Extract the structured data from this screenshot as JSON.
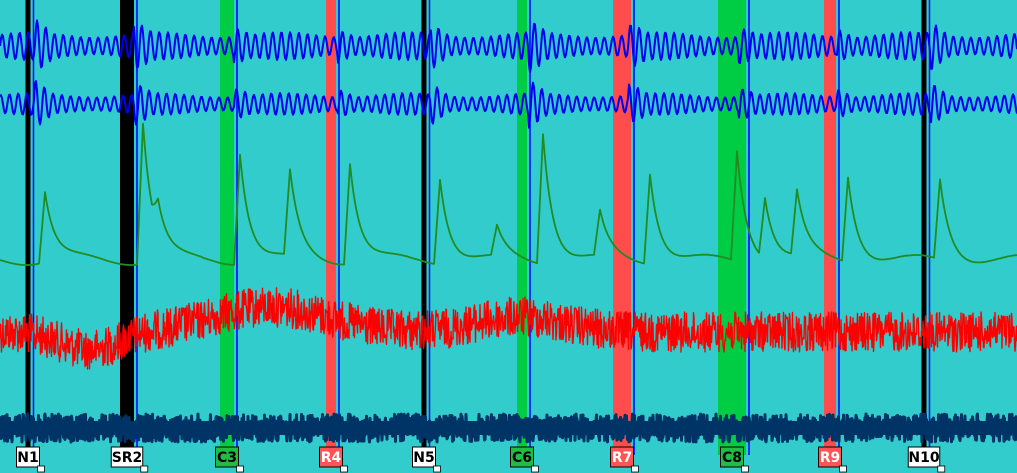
{
  "chart_data": {
    "type": "line",
    "title": "",
    "xlabel": "",
    "ylabel": "",
    "background": "#33cccc",
    "grid": false,
    "legend": "none",
    "x_range": [
      0,
      1017
    ],
    "markers": [
      {
        "label": "N1",
        "x": 28,
        "kind": "N",
        "band": 5,
        "band_color": "#000000",
        "label_bg": "#ffffff",
        "label_fg": "#000000"
      },
      {
        "label": "SR2",
        "x": 127,
        "kind": "SR",
        "band": 14,
        "band_color": "#000000",
        "label_bg": "#ffffff",
        "label_fg": "#000000"
      },
      {
        "label": "C3",
        "x": 227,
        "kind": "C",
        "band": 14,
        "band_color": "#00cc44",
        "label_bg": "#22bb44",
        "label_fg": "#000000"
      },
      {
        "label": "R4",
        "x": 331,
        "kind": "R",
        "band": 10,
        "band_color": "#ff4d4d",
        "label_bg": "#ff5555",
        "label_fg": "#ffffff"
      },
      {
        "label": "N5",
        "x": 424,
        "kind": "N",
        "band": 5,
        "band_color": "#000000",
        "label_bg": "#ffffff",
        "label_fg": "#000000"
      },
      {
        "label": "C6",
        "x": 522,
        "kind": "C",
        "band": 10,
        "band_color": "#00cc44",
        "label_bg": "#22bb44",
        "label_fg": "#000000"
      },
      {
        "label": "R7",
        "x": 622,
        "kind": "R",
        "band": 18,
        "band_color": "#ff4d4d",
        "label_bg": "#ff5555",
        "label_fg": "#ffffff"
      },
      {
        "label": "C8",
        "x": 732,
        "kind": "C",
        "band": 28,
        "band_color": "#00cc44",
        "label_bg": "#22bb44",
        "label_fg": "#000000"
      },
      {
        "label": "R9",
        "x": 830,
        "kind": "R",
        "band": 12,
        "band_color": "#ff4d4d",
        "label_bg": "#ff5555",
        "label_fg": "#ffffff"
      },
      {
        "label": "N10",
        "x": 924,
        "kind": "N",
        "band": 5,
        "band_color": "#000000",
        "label_bg": "#ffffff",
        "label_fg": "#000000"
      }
    ],
    "series": [
      {
        "color": "#0000ee",
        "baseline": 46,
        "amp": 14,
        "style": "fast-oscillation"
      },
      {
        "color": "#0000ee",
        "baseline": 104,
        "amp": 11,
        "style": "fast-oscillation"
      },
      {
        "color": "#228b22",
        "baseline": 260,
        "amp": 130,
        "style": "peaks"
      },
      {
        "color": "#ff0000",
        "baseline": 332,
        "amp": 40,
        "style": "noise"
      },
      {
        "color": "#003366",
        "baseline": 428,
        "amp": 14,
        "style": "band-noise"
      }
    ],
    "green_peaks": [
      {
        "x": 45,
        "h": 70
      },
      {
        "x": 143,
        "h": 140
      },
      {
        "x": 158,
        "h": 30
      },
      {
        "x": 240,
        "h": 110
      },
      {
        "x": 290,
        "h": 85
      },
      {
        "x": 350,
        "h": 100
      },
      {
        "x": 440,
        "h": 85
      },
      {
        "x": 497,
        "h": 30
      },
      {
        "x": 543,
        "h": 130
      },
      {
        "x": 600,
        "h": 45
      },
      {
        "x": 650,
        "h": 90
      },
      {
        "x": 737,
        "h": 110
      },
      {
        "x": 765,
        "h": 60
      },
      {
        "x": 797,
        "h": 65
      },
      {
        "x": 848,
        "h": 85
      },
      {
        "x": 940,
        "h": 80
      }
    ]
  }
}
